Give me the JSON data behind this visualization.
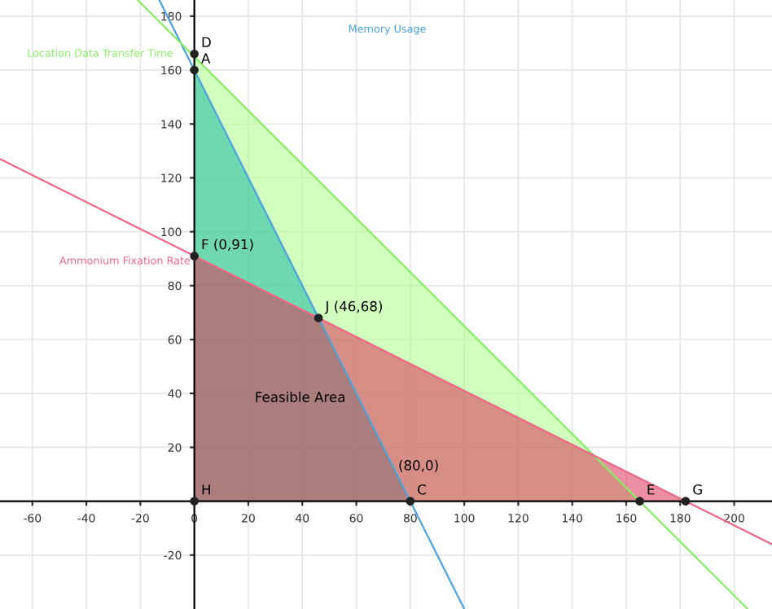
{
  "chart_data": {
    "type": "line",
    "xlim": [
      -72,
      214
    ],
    "ylim": [
      -40,
      186
    ],
    "xticks": [
      -60,
      -40,
      -20,
      0,
      20,
      40,
      60,
      80,
      100,
      120,
      140,
      160,
      180,
      200
    ],
    "yticks": [
      -20,
      20,
      40,
      60,
      80,
      100,
      120,
      140,
      160,
      180
    ],
    "grid": true,
    "legend": false,
    "series": [
      {
        "type": "area",
        "color": "#aaff88",
        "x": [
          0,
          165
        ],
        "values": [
          165,
          0
        ]
      },
      {
        "type": "area",
        "color": "#20b8a0",
        "x": [
          0,
          80
        ],
        "values": [
          160,
          0
        ]
      },
      {
        "type": "area",
        "color": "#dd3355",
        "x": [
          0,
          182
        ],
        "values": [
          91,
          0
        ]
      },
      {
        "name": "Memory Usage",
        "color": "#4aa3df",
        "x": [
          -13,
          100
        ],
        "values": [
          186,
          -40
        ]
      },
      {
        "name": "Location Data Transfer Time",
        "color": "#88ee66",
        "x": [
          -21,
          205
        ],
        "values": [
          186,
          -40
        ]
      },
      {
        "name": "Ammonium Fixation Rate",
        "color": "#ee6688",
        "x": [
          -72,
          214
        ],
        "values": [
          127,
          -16
        ]
      },
      {
        "type": "scatter",
        "color": "#222222",
        "marker": "circle",
        "x": [
          0,
          0,
          0,
          46,
          0,
          80,
          165,
          182
        ],
        "values": [
          166,
          160,
          91,
          68,
          0,
          0,
          0,
          0
        ]
      }
    ],
    "annotations": [
      {
        "text": "D",
        "x": 0,
        "y": 166
      },
      {
        "text": "A",
        "x": 0,
        "y": 160
      },
      {
        "text": "F (0,91)",
        "x": 0,
        "y": 91
      },
      {
        "text": "J (46,68)",
        "x": 46,
        "y": 68
      },
      {
        "text": "H",
        "x": 0,
        "y": 0
      },
      {
        "text": "C",
        "x": 80,
        "y": 0
      },
      {
        "text": "(80,0)",
        "x": 73,
        "y": 9
      },
      {
        "text": "E",
        "x": 165,
        "y": 0
      },
      {
        "text": "G",
        "x": 182,
        "y": 0
      },
      "Feasible Area"
    ]
  }
}
